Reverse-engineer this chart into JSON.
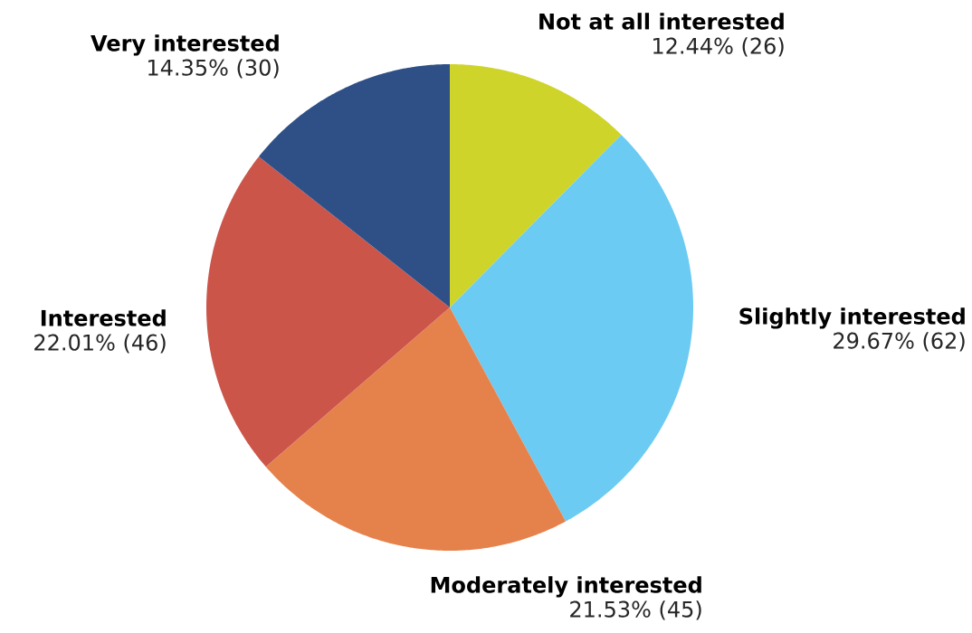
{
  "chart_data": {
    "type": "pie",
    "categories": [
      "Not at all interested",
      "Slightly interested",
      "Moderately interested",
      "Interested",
      "Very interested"
    ],
    "values": [
      26,
      62,
      45,
      46,
      30
    ],
    "value_labels": [
      "12.44% (26)",
      "29.67% (62)",
      "21.53% (45)",
      "22.01% (46)",
      "14.35% (30)"
    ],
    "colors": [
      "#cfd42b",
      "#6ccbf2",
      "#e5824c",
      "#cc554a",
      "#2e5087"
    ]
  }
}
